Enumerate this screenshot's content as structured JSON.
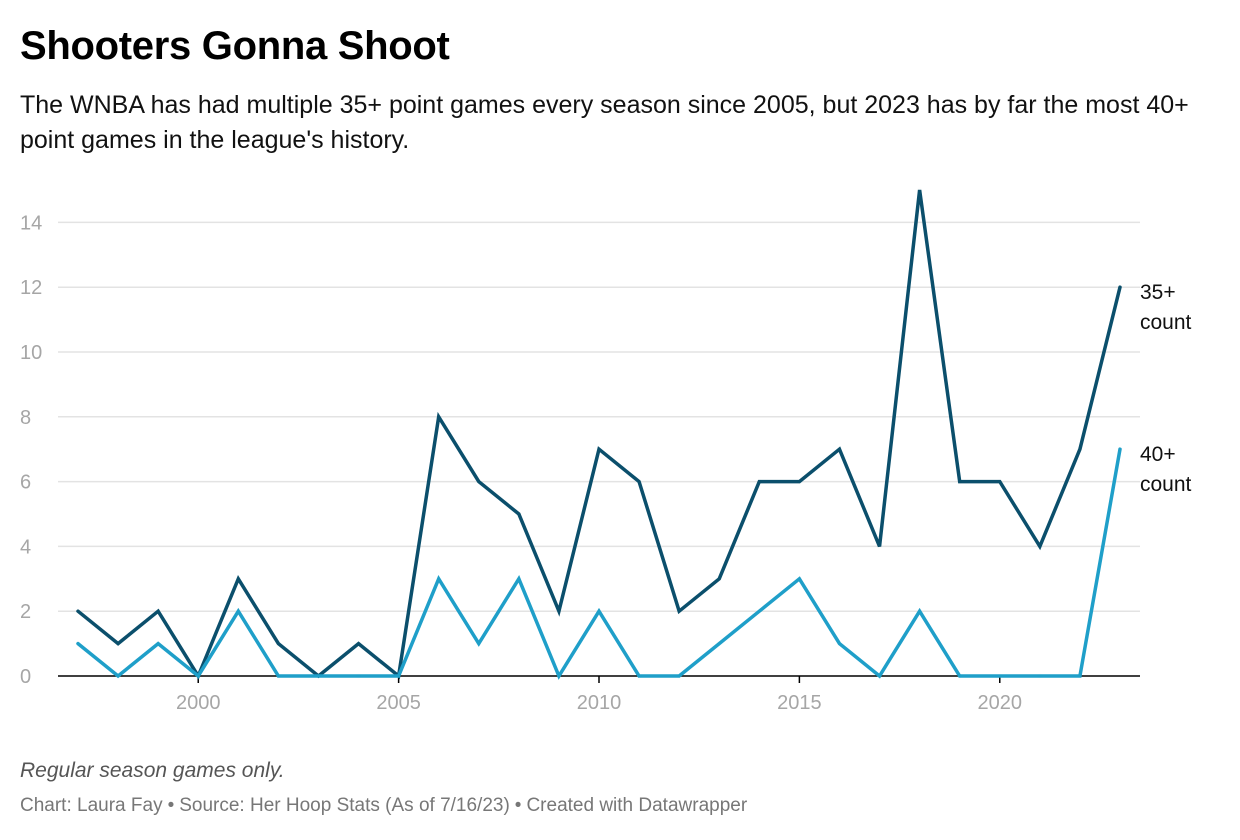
{
  "chart_data": {
    "type": "line",
    "title": "Shooters Gonna Shoot",
    "subtitle": "The WNBA has had multiple 35+ point games every season since 2005, but 2023 has by far the most 40+ point games in the league's history.",
    "note": "Regular season games only.",
    "footer": {
      "chart_by": "Chart: Laura Fay",
      "source": "Source: Her Hoop Stats (As of 7/16/23)",
      "created_with": "Created with Datawrapper",
      "separator": "•"
    },
    "xlabel": "",
    "ylabel": "",
    "xlim": [
      1997,
      2023
    ],
    "ylim": [
      0,
      15
    ],
    "x_ticks": [
      2000,
      2005,
      2010,
      2015,
      2020
    ],
    "y_ticks": [
      0,
      2,
      4,
      6,
      8,
      10,
      12,
      14
    ],
    "grid": true,
    "legend": "direct labels at line ends (right)",
    "x": [
      1997,
      1998,
      1999,
      2000,
      2001,
      2002,
      2003,
      2004,
      2005,
      2006,
      2007,
      2008,
      2009,
      2010,
      2011,
      2012,
      2013,
      2014,
      2015,
      2016,
      2017,
      2018,
      2019,
      2020,
      2021,
      2022,
      2023
    ],
    "series": [
      {
        "name": "35+ count",
        "label_lines": [
          "35+",
          "count"
        ],
        "color": "#0b4f6c",
        "values": [
          2,
          1,
          2,
          0,
          3,
          1,
          0,
          1,
          0,
          8,
          6,
          5,
          2,
          7,
          6,
          2,
          3,
          6,
          6,
          7,
          4,
          15,
          6,
          6,
          4,
          7,
          12
        ]
      },
      {
        "name": "40+ count",
        "label_lines": [
          "40+",
          "count"
        ],
        "color": "#1f9fc9",
        "values": [
          1,
          0,
          1,
          0,
          2,
          0,
          0,
          0,
          0,
          3,
          1,
          3,
          0,
          2,
          0,
          0,
          1,
          2,
          3,
          1,
          0,
          2,
          0,
          0,
          0,
          0,
          7
        ]
      }
    ],
    "colors": {
      "grid": "#e3e3e3",
      "axis": "#000000",
      "tick_text": "#a6a6a6",
      "label_text": "#111111"
    }
  }
}
